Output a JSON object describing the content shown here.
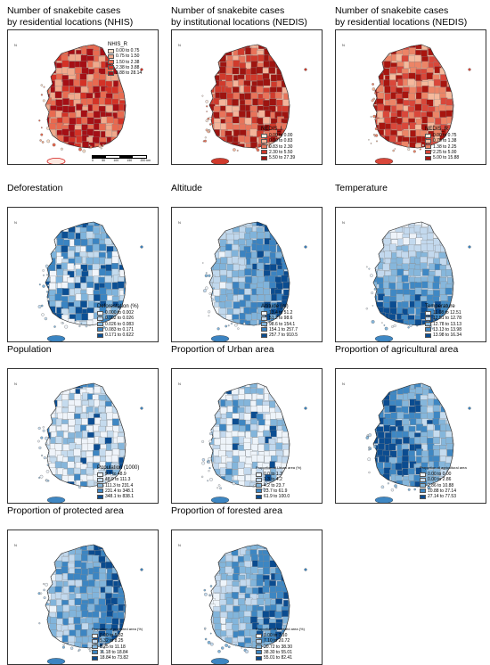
{
  "panels": [
    {
      "id": "nhis",
      "title_lines": [
        "Number of snakebite cases",
        "by residential locations (NHIS)"
      ],
      "legend_title": "NHIS_R",
      "legend_pos": "top-right",
      "palette": "red",
      "island_style": "outline",
      "scale_bar": true,
      "legend": [
        "0.00 to 0.75",
        "0.75 to 1.50",
        "1.50 to 2.38",
        "2.38 to 3.88",
        "3.88 to 28.14"
      ],
      "colors": [
        "#f6dcc8",
        "#f0a98c",
        "#e86a50",
        "#d43226",
        "#a50f15"
      ]
    },
    {
      "id": "nedis-i",
      "title_lines": [
        "Number of snakebite cases",
        "by institutional locations (NEDIS)"
      ],
      "legend_title": "NEDIS_I",
      "legend_pos": "bottom-right",
      "palette": "red",
      "island_style": "filled",
      "scale_bar": false,
      "legend": [
        "0.00 to 0.00",
        "0.00 to 0.83",
        "0.83 to 2.30",
        "2.30 to 5.50",
        "5.50 to 27.39"
      ],
      "colors": [
        "#fbe9de",
        "#f4b49a",
        "#e8735a",
        "#d03a2c",
        "#9e1410"
      ]
    },
    {
      "id": "nedis-r",
      "title_lines": [
        "Number of snakebite cases",
        "by residential locations (NEDIS)"
      ],
      "legend_title": "NEDIS_R",
      "legend_pos": "bottom-right",
      "palette": "red",
      "island_style": "filled",
      "scale_bar": false,
      "legend": [
        "0.00 to 0.75",
        "0.75 to 1.38",
        "1.38 to 2.25",
        "2.25 to 5.00",
        "5.00 to 15.88"
      ],
      "colors": [
        "#fbe4d4",
        "#f5b99c",
        "#ec8466",
        "#d9473a",
        "#a8150f"
      ]
    },
    {
      "id": "deforestation",
      "title_lines": [
        "Deforestation"
      ],
      "legend_title": "Deforestation (%)",
      "legend_pos": "bottom-right",
      "palette": "blue",
      "island_style": "filled",
      "scale_bar": false,
      "legend": [
        "0.000 to 0.002",
        "0.002 to 0.026",
        "0.026 to 0.083",
        "0.083 to 0.171",
        "0.171 to 0.622"
      ],
      "colors": [
        "#f2f6fb",
        "#c4dbee",
        "#7fb4dc",
        "#3a84c2",
        "#0b4f94"
      ]
    },
    {
      "id": "altitude",
      "title_lines": [
        "Altitude"
      ],
      "legend_title": "Altitude (m)",
      "legend_pos": "bottom-right",
      "palette": "blue",
      "island_style": "filled",
      "scale_bar": false,
      "legend": [
        "13.4 to 51.2",
        "51.2 to 98.6",
        "98.6 to 154.1",
        "154.1 to 257.7",
        "257.7 to 910.5"
      ],
      "colors": [
        "#eef4fa",
        "#c0d8ed",
        "#80b3da",
        "#3b83c1",
        "#0a4c90"
      ]
    },
    {
      "id": "temperature",
      "title_lines": [
        "Temperature"
      ],
      "legend_title": "Temperature",
      "legend_pos": "bottom-right",
      "palette": "blue",
      "island_style": "filled",
      "scale_bar": false,
      "legend": [
        "11.08 to 12.51",
        "12.51 to 12.78",
        "12.78 to 13.13",
        "13.13 to 13.98",
        "13.98 to 16.34"
      ],
      "colors": [
        "#eef3f9",
        "#c3d9ee",
        "#86b7dc",
        "#3f88c4",
        "#0b4d92"
      ]
    },
    {
      "id": "population",
      "title_lines": [
        "Population"
      ],
      "legend_title": "Population (1000)",
      "legend_pos": "bottom-right",
      "palette": "blue",
      "island_style": "filled",
      "scale_bar": false,
      "legend": [
        "9.7 to 48.9",
        "48.9 to 111.3",
        "111.3 to 231.4",
        "231.4 to 348.1",
        "348.1 to 838.1"
      ],
      "colors": [
        "#eff4fa",
        "#c5dbee",
        "#86b6db",
        "#3f87c3",
        "#0c4e93"
      ]
    },
    {
      "id": "urban",
      "title_lines": [
        "Proportion of Urban area"
      ],
      "legend_title": "Proportion of Urban area (%)",
      "legend_pos": "bottom-right",
      "palette": "blue",
      "island_style": "filled",
      "scale_bar": false,
      "small_title": true,
      "legend": [
        "0.0 to 1.3",
        "1.3 to 4.2",
        "4.2 to 23.7",
        "23.7 to 61.9",
        "61.9 to 100.0"
      ],
      "colors": [
        "#eef4fa",
        "#c3d9ee",
        "#83b5db",
        "#3d86c2",
        "#0b4d91"
      ]
    },
    {
      "id": "agricultural",
      "title_lines": [
        "Proportion of agricultural area"
      ],
      "legend_title": "Proportion of agricultural area",
      "legend_pos": "bottom-right",
      "palette": "blue",
      "island_style": "filled",
      "scale_bar": false,
      "small_title": true,
      "legend": [
        "0.00 to 0.00",
        "0.00 to 2.86",
        "2.86 to 10.88",
        "10.88 to 27.14",
        "27.14 to 77.53"
      ],
      "colors": [
        "#f0f5fa",
        "#c6dcef",
        "#85b6db",
        "#3e87c3",
        "#0b4c90"
      ]
    },
    {
      "id": "protected",
      "title_lines": [
        "Proportion of protected area"
      ],
      "legend_title": "Proportion of protected area (%)",
      "legend_pos": "bottom-right",
      "palette": "blue",
      "island_style": "filled",
      "scale_bar": false,
      "small_title": true,
      "legend": [
        "0.00 to 5.32",
        "5.32 to 8.25",
        "8.25 to 11.18",
        "11.18 to 18.84",
        "18.84 to 73.82"
      ],
      "colors": [
        "#eef4fa",
        "#c2d9ee",
        "#81b4db",
        "#3c85c2",
        "#0a4b8f"
      ]
    },
    {
      "id": "forested",
      "title_lines": [
        "Proportion of forested area"
      ],
      "legend_title": "Proportion of forested area (%)",
      "legend_pos": "bottom-right",
      "palette": "blue",
      "island_style": "filled",
      "scale_bar": false,
      "small_title": true,
      "legend": [
        "0.00 to 7.10",
        "7.10 to 20.72",
        "20.72 to 38.30",
        "38.30 to 55.01",
        "55.01 to 82.41"
      ],
      "colors": [
        "#eef4fa",
        "#c3d9ee",
        "#82b5db",
        "#3d86c2",
        "#0a4b8f"
      ]
    }
  ],
  "scale_bar": {
    "labels": [
      "0",
      "50",
      "100",
      "150",
      "200 km"
    ]
  },
  "north_label": "N",
  "island_label": "Jeju"
}
